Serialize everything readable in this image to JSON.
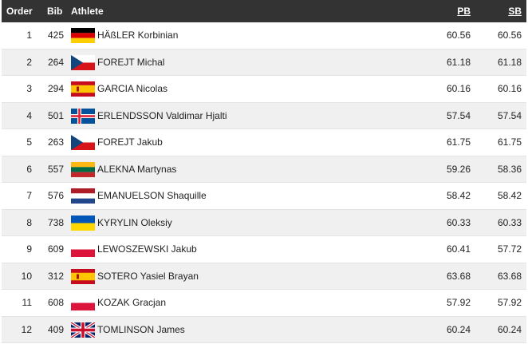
{
  "header": {
    "order": "Order",
    "bib": "Bib",
    "athlete": "Athlete",
    "pb": "PB",
    "sb": "SB"
  },
  "rows": [
    {
      "order": "1",
      "bib": "425",
      "flag": "germany-flag-icon",
      "name": "HÄßLER Korbinian",
      "pb": "60.56",
      "sb": "60.56"
    },
    {
      "order": "2",
      "bib": "264",
      "flag": "czechia-flag-icon",
      "name": "FOREJT Michal",
      "pb": "61.18",
      "sb": "61.18"
    },
    {
      "order": "3",
      "bib": "294",
      "flag": "spain-flag-icon",
      "name": "GARCIA Nicolas",
      "pb": "60.16",
      "sb": "60.16"
    },
    {
      "order": "4",
      "bib": "501",
      "flag": "iceland-flag-icon",
      "name": "ERLENDSSON Valdimar Hjalti",
      "pb": "57.54",
      "sb": "57.54"
    },
    {
      "order": "5",
      "bib": "263",
      "flag": "czechia-flag-icon",
      "name": "FOREJT Jakub",
      "pb": "61.75",
      "sb": "61.75"
    },
    {
      "order": "6",
      "bib": "557",
      "flag": "lithuania-flag-icon",
      "name": "ALEKNA Martynas",
      "pb": "59.26",
      "sb": "58.36"
    },
    {
      "order": "7",
      "bib": "576",
      "flag": "netherlands-flag-icon",
      "name": "EMANUELSON Shaquille",
      "pb": "58.42",
      "sb": "58.42"
    },
    {
      "order": "8",
      "bib": "738",
      "flag": "ukraine-flag-icon",
      "name": "KYRYLIN Oleksiy",
      "pb": "60.33",
      "sb": "60.33"
    },
    {
      "order": "9",
      "bib": "609",
      "flag": "poland-flag-icon",
      "name": "LEWOSZEWSKI Jakub",
      "pb": "60.41",
      "sb": "57.72"
    },
    {
      "order": "10",
      "bib": "312",
      "flag": "spain-flag-icon",
      "name": "SOTERO Yasiel Brayan",
      "pb": "63.68",
      "sb": "63.68"
    },
    {
      "order": "11",
      "bib": "608",
      "flag": "poland-flag-icon",
      "name": "KOZAK Gracjan",
      "pb": "57.92",
      "sb": "57.92"
    },
    {
      "order": "12",
      "bib": "409",
      "flag": "uk-flag-icon",
      "name": "TOMLINSON James",
      "pb": "60.24",
      "sb": "60.24"
    }
  ]
}
